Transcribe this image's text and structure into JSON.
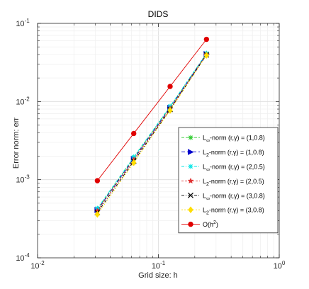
{
  "chart_data": {
    "type": "line",
    "title": "DIDS",
    "xlabel": "Grid size: h",
    "ylabel": "Error norm: err",
    "xscale": "log",
    "yscale": "log",
    "xlim": [
      0.01,
      1
    ],
    "ylim": [
      0.0001,
      0.1
    ],
    "grid": true,
    "legend_placement": "right",
    "x": [
      0.03125,
      0.0625,
      0.125,
      0.25
    ],
    "x_ticks": [
      {
        "base": "10",
        "exp": "-2",
        "value": 0.01
      },
      {
        "base": "10",
        "exp": "-1",
        "value": 0.1
      },
      {
        "base": "10",
        "exp": "0",
        "value": 1
      }
    ],
    "y_ticks": [
      {
        "base": "10",
        "exp": "-4",
        "value": 0.0001
      },
      {
        "base": "10",
        "exp": "-3",
        "value": 0.001
      },
      {
        "base": "10",
        "exp": "-2",
        "value": 0.01
      },
      {
        "base": "10",
        "exp": "-1",
        "value": 0.1
      }
    ],
    "series": [
      {
        "norm": "L",
        "sub": "∞",
        "params": "-norm (r,γ) = (1,0.8)",
        "values": [
          0.00042,
          0.0019,
          0.0085,
          0.041
        ],
        "color": "#33cc33",
        "marker": "asterisk",
        "dash": "4,2"
      },
      {
        "norm": "L",
        "sub": "2",
        "params": "-norm (r,γ) = (1,0.8)",
        "values": [
          0.00041,
          0.00185,
          0.0083,
          0.0405
        ],
        "color": "#0000cc",
        "marker": "triangle-right",
        "dash": "5,3"
      },
      {
        "norm": "L",
        "sub": "∞",
        "params": "-norm (r,γ) = (2,0.5)",
        "values": [
          0.00043,
          0.00195,
          0.0087,
          0.0415
        ],
        "color": "#00e5e5",
        "marker": "asterisk",
        "dash": "4,2,1,2"
      },
      {
        "norm": "L",
        "sub": "2",
        "params": "-norm (r,γ) = (2,0.5)",
        "values": [
          0.0004,
          0.0018,
          0.0081,
          0.04
        ],
        "color": "#e03030",
        "marker": "star",
        "dash": "3,2"
      },
      {
        "norm": "L",
        "sub": "∞",
        "params": "-norm (r,γ) = (3,0.8)",
        "values": [
          0.00038,
          0.00172,
          0.0079,
          0.0395
        ],
        "color": "#000000",
        "marker": "cross",
        "dash": "4,2,1,2"
      },
      {
        "norm": "L",
        "sub": "2",
        "params": "-norm (r,γ) = (3,0.8)",
        "values": [
          0.00036,
          0.00165,
          0.0077,
          0.039
        ],
        "color": "#ffdd00",
        "marker": "diamond",
        "dash": "2,2"
      },
      {
        "norm": "O(h",
        "sub": "",
        "sup": "2",
        "params": ")",
        "values": [
          0.00097,
          0.0039,
          0.0156,
          0.0625
        ],
        "color": "#e00000",
        "marker": "circle",
        "dash": ""
      }
    ]
  }
}
